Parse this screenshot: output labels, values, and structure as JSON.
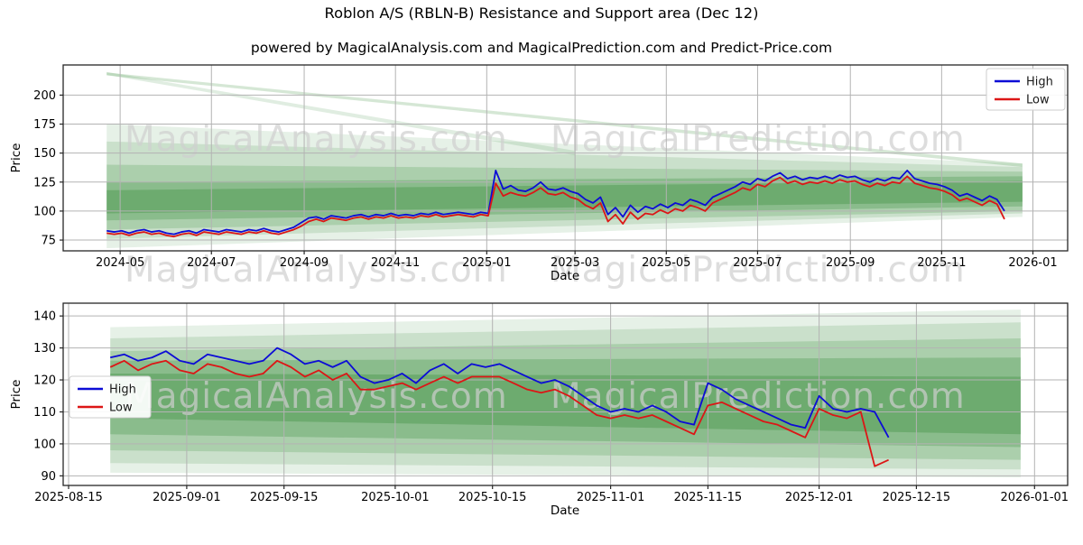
{
  "header": {
    "title": "Roblon A/S (RBLN-B) Resistance and Support area (Dec 12)",
    "subtitle": "powered by MagicalAnalysis.com and MagicalPrediction.com and Predict-Price.com"
  },
  "watermarks": {
    "analysis": "MagicalAnalysis.com",
    "prediction": "MagicalPrediction.com"
  },
  "colors": {
    "high": "#0c0cd6",
    "low": "#dc1616",
    "band": "#3f9142",
    "grid": "#b3b3b3",
    "axis": "#262626",
    "watermark": "#cfcfcf",
    "legend_border": "#cccccc",
    "text": "#000000"
  },
  "chart_data": [
    {
      "type": "line",
      "name": "overview",
      "xlabel": "Date",
      "ylabel": "Price",
      "ylim": [
        65.7,
        226
      ],
      "yticks": [
        75,
        100,
        125,
        150,
        175,
        200
      ],
      "xticks": [
        {
          "label": "2024-05",
          "day": 9
        },
        {
          "label": "2024-07",
          "day": 70
        },
        {
          "label": "2024-09",
          "day": 132
        },
        {
          "label": "2024-11",
          "day": 193
        },
        {
          "label": "2025-01",
          "day": 254
        },
        {
          "label": "2025-03",
          "day": 313
        },
        {
          "label": "2025-05",
          "day": 374
        },
        {
          "label": "2025-07",
          "day": 435
        },
        {
          "label": "2025-09",
          "day": 497
        },
        {
          "label": "2025-11",
          "day": 558
        },
        {
          "label": "2026-01",
          "day": 619
        }
      ],
      "legend": {
        "position": "upper right",
        "items": [
          {
            "label": "High",
            "color_key": "high"
          },
          {
            "label": "Low",
            "color_key": "low"
          }
        ]
      },
      "series": {
        "start_date": "2024-04-22",
        "step_days": 5,
        "high": [
          83,
          82,
          83,
          81,
          83,
          84,
          82,
          83,
          81,
          80,
          82,
          83,
          81,
          84,
          83,
          82,
          84,
          83,
          82,
          84,
          83,
          85,
          83,
          82,
          84,
          86,
          90,
          94,
          95,
          93,
          96,
          95,
          94,
          96,
          97,
          95,
          97,
          96,
          98,
          96,
          97,
          96,
          98,
          97,
          99,
          97,
          98,
          99,
          98,
          97,
          99,
          98,
          135,
          119,
          122,
          118,
          117,
          120,
          125,
          119,
          118,
          120,
          117,
          115,
          110,
          107,
          112,
          97,
          103,
          95,
          105,
          99,
          104,
          102,
          106,
          103,
          107,
          105,
          110,
          108,
          105,
          112,
          115,
          118,
          121,
          125,
          123,
          128,
          126,
          130,
          133,
          128,
          130,
          127,
          129,
          128,
          130,
          128,
          131,
          129,
          130,
          127,
          125,
          128,
          126,
          129,
          128,
          135,
          128,
          126,
          124,
          123,
          121,
          118,
          113,
          115,
          112,
          109,
          113,
          110,
          100
        ],
        "low": [
          81,
          80,
          81,
          79,
          81,
          82,
          80,
          81,
          79,
          78,
          80,
          81,
          79,
          82,
          81,
          80,
          82,
          81,
          80,
          82,
          81,
          83,
          81,
          80,
          82,
          84,
          87,
          91,
          93,
          91,
          94,
          93,
          92,
          94,
          95,
          93,
          95,
          94,
          96,
          94,
          95,
          94,
          96,
          95,
          97,
          95,
          96,
          97,
          96,
          95,
          97,
          96,
          124,
          113,
          116,
          114,
          113,
          116,
          120,
          115,
          114,
          116,
          112,
          110,
          105,
          102,
          107,
          91,
          97,
          89,
          99,
          93,
          98,
          97,
          101,
          98,
          102,
          100,
          105,
          103,
          100,
          107,
          110,
          113,
          116,
          120,
          118,
          123,
          121,
          126,
          129,
          124,
          126,
          123,
          125,
          124,
          126,
          124,
          127,
          125,
          126,
          123,
          121,
          124,
          122,
          125,
          124,
          130,
          124,
          122,
          120,
          119,
          117,
          114,
          109,
          111,
          108,
          105,
          109,
          106,
          93
        ]
      },
      "support_resistance_bands": [
        {
          "d0": 0,
          "d1": 612,
          "top0": 175,
          "top1": 141,
          "bot0": 68,
          "bot1": 95,
          "opacity": 0.13
        },
        {
          "d0": 0,
          "d1": 612,
          "top0": 160,
          "top1": 138,
          "bot0": 76,
          "bot1": 98,
          "opacity": 0.17
        },
        {
          "d0": 0,
          "d1": 612,
          "top0": 140,
          "top1": 134,
          "bot0": 84,
          "bot1": 100,
          "opacity": 0.22
        },
        {
          "d0": 0,
          "d1": 612,
          "top0": 125,
          "top1": 130,
          "bot0": 92,
          "bot1": 104,
          "opacity": 0.3
        },
        {
          "d0": 0,
          "d1": 612,
          "top0": 118,
          "top1": 126,
          "bot0": 98,
          "bot1": 108,
          "opacity": 0.38
        },
        {
          "d0": 0,
          "d1": 612,
          "top0": 219.5,
          "top1": 141,
          "bot0": 217,
          "bot1": 138,
          "opacity": 0.22
        },
        {
          "d0": 0,
          "d1": 313,
          "top0": 220,
          "top1": 152,
          "bot0": 217.5,
          "bot1": 148,
          "opacity": 0.16
        }
      ]
    },
    {
      "type": "line",
      "name": "zoomed",
      "xlabel": "Date",
      "ylabel": "Price",
      "ylim": [
        87,
        144
      ],
      "yticks": [
        90,
        100,
        110,
        120,
        130,
        140
      ],
      "xticks": [
        {
          "label": "2025-08-15",
          "day": -6
        },
        {
          "label": "2025-09-01",
          "day": 11
        },
        {
          "label": "2025-09-15",
          "day": 25
        },
        {
          "label": "2025-10-01",
          "day": 41
        },
        {
          "label": "2025-10-15",
          "day": 55
        },
        {
          "label": "2025-11-01",
          "day": 72
        },
        {
          "label": "2025-11-15",
          "day": 86
        },
        {
          "label": "2025-12-01",
          "day": 102
        },
        {
          "label": "2025-12-15",
          "day": 116
        },
        {
          "label": "2026-01-01",
          "day": 133
        }
      ],
      "legend": {
        "position": "center left",
        "items": [
          {
            "label": "High",
            "color_key": "high"
          },
          {
            "label": "Low",
            "color_key": "low"
          }
        ]
      },
      "series": {
        "start_date": "2025-08-21",
        "step_days": 2,
        "high": [
          127,
          128,
          126,
          127,
          129,
          126,
          125,
          128,
          127,
          126,
          125,
          126,
          130,
          128,
          125,
          126,
          124,
          126,
          121,
          119,
          120,
          122,
          119,
          123,
          125,
          122,
          125,
          124,
          125,
          123,
          121,
          119,
          120,
          118,
          115,
          112,
          110,
          111,
          110,
          112,
          110,
          107,
          106,
          119,
          117,
          114,
          112,
          110,
          108,
          106,
          105,
          115,
          111,
          110,
          111,
          110,
          102
        ],
        "low": [
          124,
          126,
          123,
          125,
          126,
          123,
          122,
          125,
          124,
          122,
          121,
          122,
          126,
          124,
          121,
          123,
          120,
          122,
          117,
          117,
          118,
          119,
          117,
          119,
          121,
          119,
          121,
          121,
          121,
          119,
          117,
          116,
          117,
          115,
          112,
          109,
          108,
          109,
          108,
          109,
          107,
          105,
          103,
          112,
          113,
          111,
          109,
          107,
          106,
          104,
          102,
          111,
          109,
          108,
          110,
          93,
          95
        ]
      },
      "support_resistance_bands": [
        {
          "d0": 0,
          "d1": 131,
          "top0": 136.5,
          "top1": 142,
          "bot0": 91,
          "bot1": 89.5,
          "opacity": 0.13
        },
        {
          "d0": 0,
          "d1": 131,
          "top0": 133,
          "top1": 138,
          "bot0": 94,
          "bot1": 92,
          "opacity": 0.17
        },
        {
          "d0": 0,
          "d1": 131,
          "top0": 129,
          "top1": 133,
          "bot0": 98,
          "bot1": 95,
          "opacity": 0.22
        },
        {
          "d0": 0,
          "d1": 131,
          "top0": 126,
          "top1": 127,
          "bot0": 103,
          "bot1": 99,
          "opacity": 0.3
        },
        {
          "d0": 0,
          "d1": 131,
          "top0": 122,
          "top1": 121,
          "bot0": 108,
          "bot1": 103,
          "opacity": 0.38
        }
      ]
    }
  ]
}
